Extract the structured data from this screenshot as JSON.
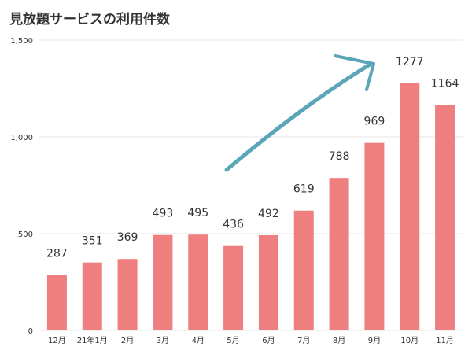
{
  "chart_data": {
    "type": "bar",
    "title": "見放題サービスの利用件数",
    "categories": [
      "12月",
      "21年1月",
      "2月",
      "3月",
      "4月",
      "5月",
      "6月",
      "7月",
      "8月",
      "9月",
      "10月",
      "11月"
    ],
    "values": [
      287,
      351,
      369,
      493,
      495,
      436,
      492,
      619,
      788,
      969,
      1277,
      1164
    ],
    "ylim": [
      0,
      1500
    ],
    "yticks": [
      0,
      500,
      1000,
      1500
    ],
    "ytick_labels": [
      "0",
      "500",
      "1,000",
      "1,500"
    ],
    "grid": true,
    "legend": "none",
    "colors": {
      "bar": "#ef7f7f",
      "arrow": "#5aa6b8",
      "grid": "#e6e6e6",
      "text": "#333333"
    },
    "annotations": [
      {
        "type": "arrow",
        "color": "#5aa6b8",
        "meaning": "upward trend"
      }
    ]
  }
}
